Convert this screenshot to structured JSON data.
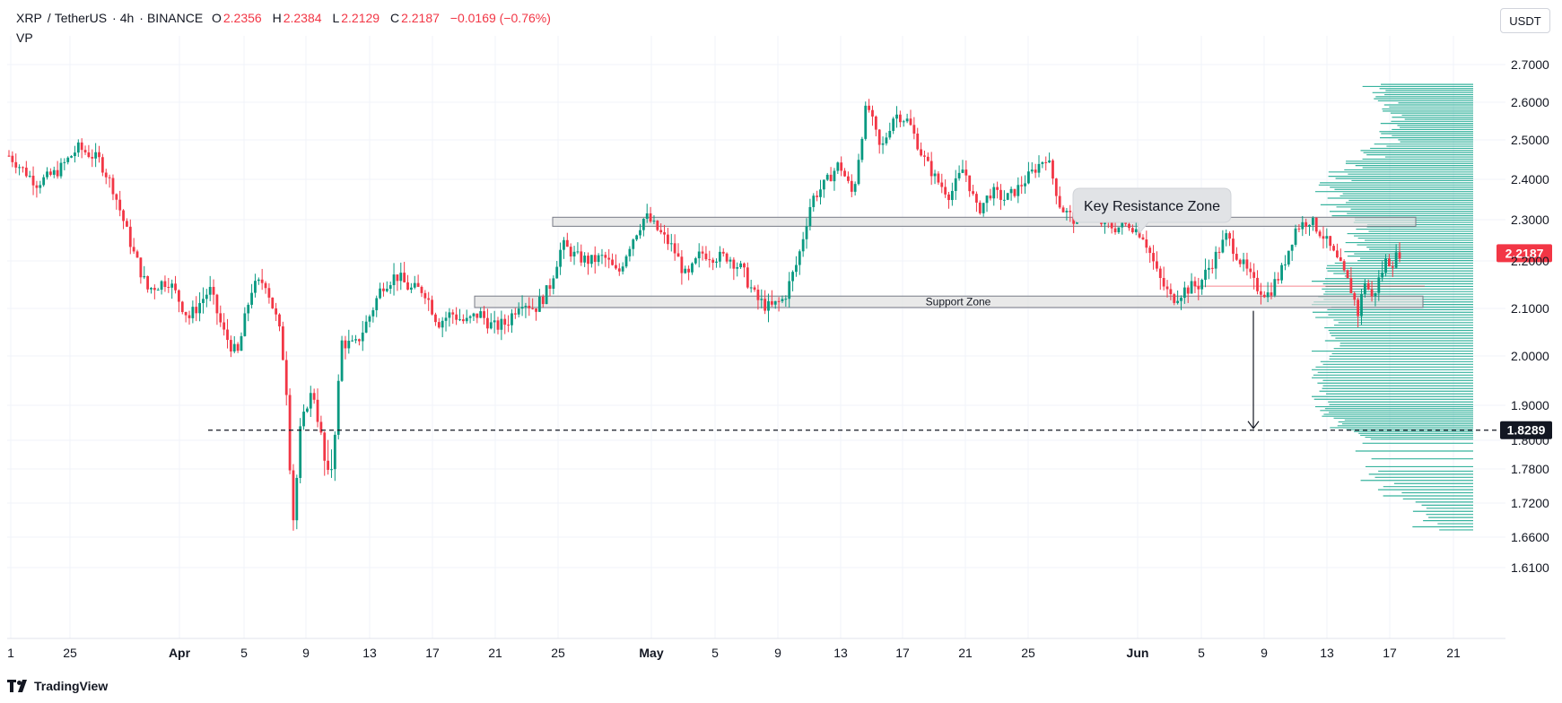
{
  "header": {
    "symbol": "XRP",
    "quote": "TetherUS",
    "interval": "4h",
    "exchange": "BINANCE",
    "o_label": "O",
    "o_value": "2.2356",
    "h_label": "H",
    "h_value": "2.2384",
    "l_label": "L",
    "l_value": "2.2129",
    "c_label": "C",
    "c_value": "2.2187",
    "change": "−0.0169 (−0.76%)",
    "indicator": "VP"
  },
  "toolbar": {
    "unit_label": "USDT"
  },
  "branding": {
    "name": "TradingView",
    "logo_icon": "tradingview-logo-icon"
  },
  "colors": {
    "up": "#089981",
    "down": "#f23645",
    "volume_profile": "#22ab94",
    "zone_fill": "#e0e0e0"
  },
  "chart_data": {
    "type": "candlestick",
    "x_tick_labels": [
      "1",
      "25",
      "Apr",
      "5",
      "9",
      "13",
      "17",
      "21",
      "25",
      "May",
      "5",
      "9",
      "13",
      "17",
      "21",
      "25",
      "Jun",
      "5",
      "9",
      "13",
      "17",
      "21"
    ],
    "y_tick_labels": [
      "2.7000",
      "2.6000",
      "2.5000",
      "2.4000",
      "2.3000",
      "2.2000",
      "2.1000",
      "2.0000",
      "1.9000",
      "1.8000",
      "1.7800",
      "1.7200",
      "1.6600",
      "1.6100"
    ],
    "y_ticks": [
      2.7,
      2.6,
      2.5,
      2.4,
      2.3,
      2.2,
      2.1,
      2.0,
      1.9,
      1.8,
      1.78,
      1.72,
      1.66,
      1.61
    ],
    "ylim": [
      1.605,
      2.74
    ],
    "last_price": {
      "value": 2.2187,
      "label": "2.2187"
    },
    "target_level": {
      "value": 1.8289,
      "label": "1.8289"
    },
    "zones": [
      {
        "label": "Key Resistance Zone",
        "low": 2.284,
        "high": 2.306
      },
      {
        "label": "Support Zone",
        "low": 2.102,
        "high": 2.126
      }
    ],
    "price_path": [
      [
        0,
        2.46
      ],
      [
        4,
        2.39
      ],
      [
        7,
        2.42
      ],
      [
        10,
        2.48
      ],
      [
        13,
        2.45
      ],
      [
        15,
        2.38
      ],
      [
        18,
        2.22
      ],
      [
        20,
        2.14
      ],
      [
        23,
        2.16
      ],
      [
        26,
        2.08
      ],
      [
        29,
        2.14
      ],
      [
        31,
        2.05
      ],
      [
        33,
        2.0
      ],
      [
        35,
        2.14
      ],
      [
        37,
        2.16
      ],
      [
        39,
        2.06
      ],
      [
        40,
        1.96
      ],
      [
        41,
        1.68
      ],
      [
        42,
        1.82
      ],
      [
        43,
        1.9
      ],
      [
        44,
        1.93
      ],
      [
        45,
        1.82
      ],
      [
        46,
        1.76
      ],
      [
        47,
        1.8
      ],
      [
        48,
        2.03
      ],
      [
        50,
        2.02
      ],
      [
        52,
        2.08
      ],
      [
        54,
        2.15
      ],
      [
        56,
        2.17
      ],
      [
        58,
        2.14
      ],
      [
        60,
        2.14
      ],
      [
        62,
        2.07
      ],
      [
        64,
        2.09
      ],
      [
        66,
        2.07
      ],
      [
        68,
        2.09
      ],
      [
        70,
        2.06
      ],
      [
        72,
        2.07
      ],
      [
        74,
        2.12
      ],
      [
        76,
        2.1
      ],
      [
        78,
        2.14
      ],
      [
        80,
        2.24
      ],
      [
        82,
        2.21
      ],
      [
        84,
        2.2
      ],
      [
        86,
        2.21
      ],
      [
        88,
        2.17
      ],
      [
        90,
        2.25
      ],
      [
        92,
        2.31
      ],
      [
        94,
        2.27
      ],
      [
        96,
        2.23
      ],
      [
        98,
        2.16
      ],
      [
        100,
        2.22
      ],
      [
        102,
        2.21
      ],
      [
        104,
        2.21
      ],
      [
        106,
        2.18
      ],
      [
        108,
        2.12
      ],
      [
        110,
        2.1
      ],
      [
        112,
        2.12
      ],
      [
        114,
        2.2
      ],
      [
        116,
        2.35
      ],
      [
        118,
        2.39
      ],
      [
        120,
        2.44
      ],
      [
        122,
        2.36
      ],
      [
        124,
        2.6
      ],
      [
        126,
        2.47
      ],
      [
        128,
        2.57
      ],
      [
        130,
        2.55
      ],
      [
        132,
        2.46
      ],
      [
        134,
        2.4
      ],
      [
        136,
        2.36
      ],
      [
        138,
        2.43
      ],
      [
        140,
        2.32
      ],
      [
        142,
        2.37
      ],
      [
        144,
        2.35
      ],
      [
        146,
        2.38
      ],
      [
        148,
        2.42
      ],
      [
        150,
        2.46
      ],
      [
        152,
        2.33
      ],
      [
        154,
        2.3
      ],
      [
        156,
        2.34
      ],
      [
        158,
        2.29
      ],
      [
        160,
        2.28
      ],
      [
        162,
        2.29
      ],
      [
        164,
        2.26
      ],
      [
        166,
        2.17
      ],
      [
        168,
        2.12
      ],
      [
        170,
        2.14
      ],
      [
        172,
        2.15
      ],
      [
        174,
        2.2
      ],
      [
        176,
        2.26
      ],
      [
        178,
        2.2
      ],
      [
        180,
        2.15
      ],
      [
        182,
        2.13
      ],
      [
        184,
        2.18
      ],
      [
        186,
        2.28
      ],
      [
        188,
        2.3
      ],
      [
        190,
        2.26
      ],
      [
        192,
        2.2
      ],
      [
        194,
        2.14
      ],
      [
        195,
        2.09
      ],
      [
        196,
        2.16
      ],
      [
        197,
        2.12
      ],
      [
        198,
        2.16
      ],
      [
        199,
        2.2
      ],
      [
        200,
        2.2
      ],
      [
        201,
        2.22
      ]
    ],
    "volume_profile": {
      "price_range": [
        1.67,
        2.65
      ],
      "rows": 180,
      "relative_volume": [
        0.3,
        0.35,
        0.5,
        0.62,
        0.7,
        0.8,
        0.85,
        0.9,
        0.95,
        1.0,
        0.98,
        0.95,
        0.9,
        0.92,
        0.96,
        1.0,
        0.94,
        0.86,
        0.78,
        0.72,
        0.7,
        0.74,
        0.8,
        0.86,
        0.9,
        0.84,
        0.74,
        0.62,
        0.54,
        0.5,
        0.5,
        0.52,
        0.55,
        0.6
      ]
    }
  }
}
